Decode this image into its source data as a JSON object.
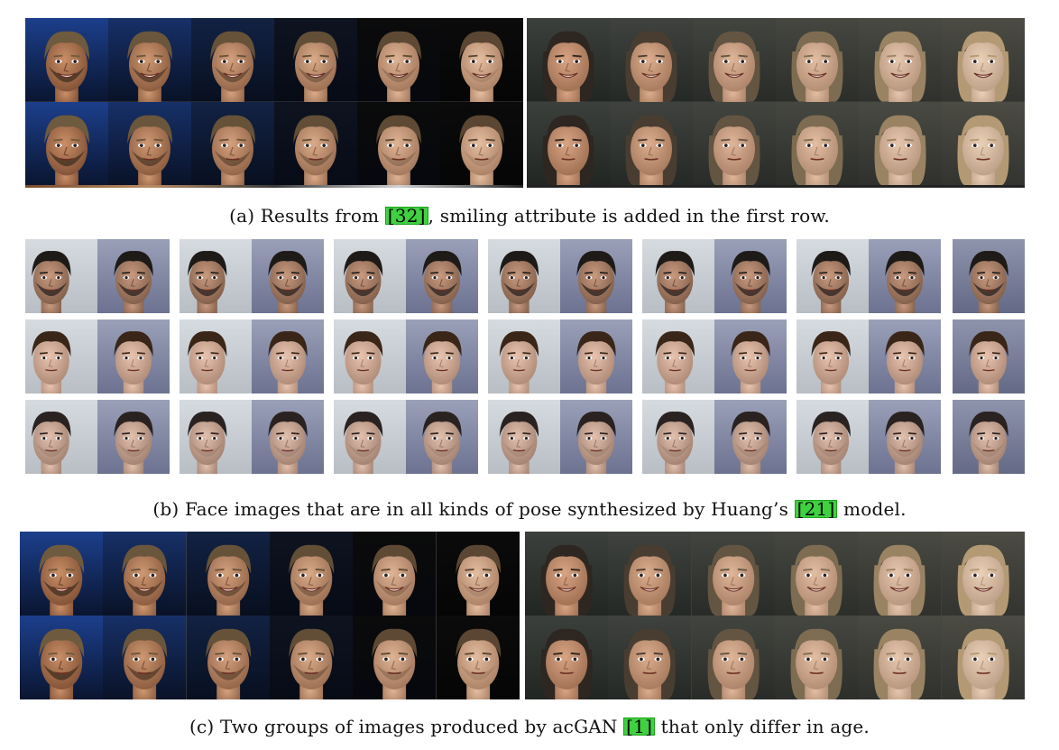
{
  "caption_a": {
    "label": "(a)",
    "before": "Results from ",
    "ref": "[32]",
    "after": ", smiling attribute is added in the first row."
  },
  "caption_b": {
    "label": "(b)",
    "before": "Face images that are in all kinds of pose synthesized by Huang’s ",
    "ref": "[21]",
    "after": " model."
  },
  "caption_c": {
    "label": "(c)",
    "before": "Two groups of images produced by acGAN ",
    "ref": "[1]",
    "after": " that only differ in age."
  },
  "colors": {
    "ref_bg": "#3fd13f",
    "ref_border": "#1aa31a"
  }
}
